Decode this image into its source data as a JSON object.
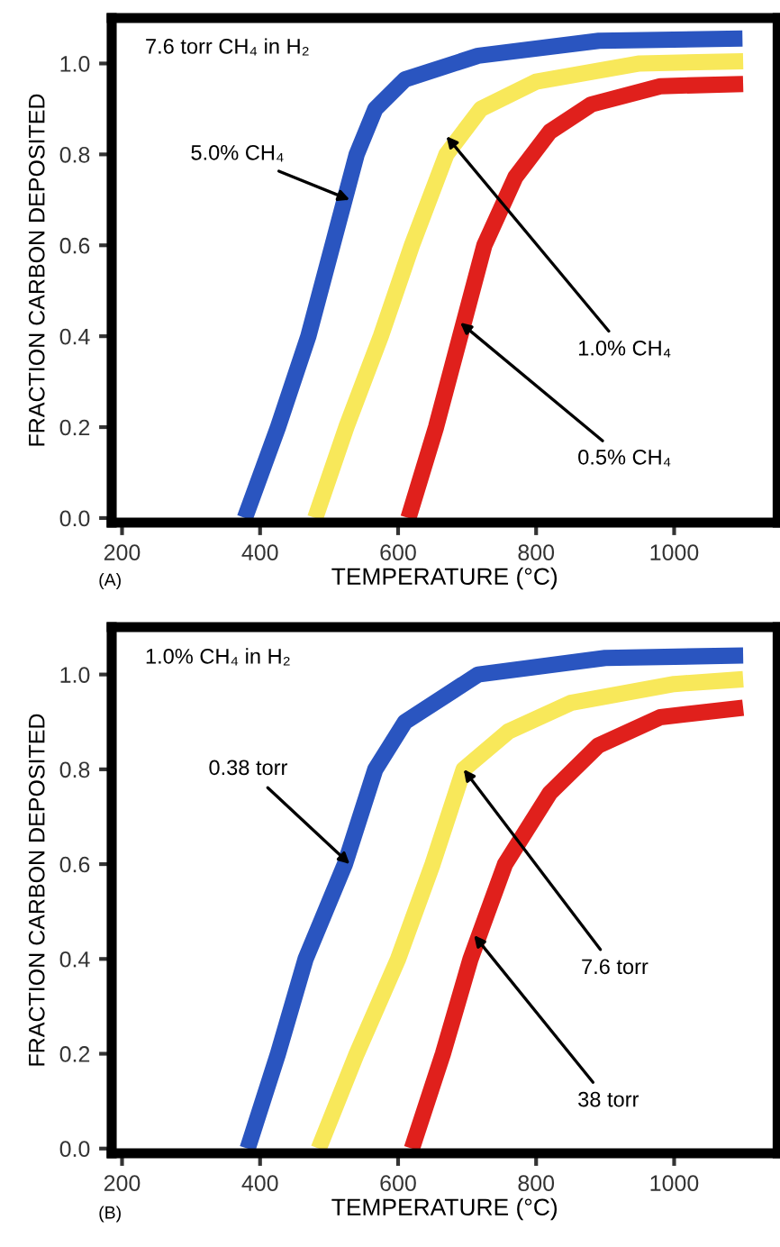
{
  "chart_data": [
    {
      "type": "line",
      "title": "7.6 torr CH₄ in H₂",
      "xlabel": "TEMPERATURE (°C)",
      "ylabel": "FRACTION CARBON DEPOSITED",
      "xlim": [
        185,
        1150
      ],
      "ylim": [
        -0.01,
        1.1
      ],
      "xticks": [
        200,
        400,
        600,
        800,
        1000
      ],
      "yticks": [
        {
          "value": 0,
          "label": "0.0"
        },
        {
          "value": 0.2,
          "label": "0.2"
        },
        {
          "value": 0.4,
          "label": "0.4"
        },
        {
          "value": 0.6,
          "label": "0.6"
        },
        {
          "value": 0.8,
          "label": "0.8"
        },
        {
          "value": 1,
          "label": "1.0"
        }
      ],
      "grid": false,
      "legend": false,
      "line_style": "solid",
      "marker": "none",
      "series": [
        {
          "color": "#2a55c0",
          "x": [
            378,
            426,
            470,
            505,
            540,
            567,
            610,
            716,
            891,
            1099
          ],
          "values": [
            0,
            0.2,
            0.4,
            0.6,
            0.8,
            0.9,
            0.965,
            1.017,
            1.05,
            1.055
          ]
        },
        {
          "color": "#f8e85a",
          "x": [
            480,
            525,
            575,
            620,
            670,
            720,
            800,
            950,
            1100
          ],
          "values": [
            0,
            0.2,
            0.4,
            0.6,
            0.8,
            0.9,
            0.96,
            1.0,
            1.005
          ]
        },
        {
          "color": "#e0201c",
          "x": [
            615,
            655,
            690,
            725,
            770,
            820,
            880,
            980,
            1100
          ],
          "values": [
            0,
            0.2,
            0.4,
            0.6,
            0.75,
            0.85,
            0.91,
            0.95,
            0.955
          ]
        }
      ],
      "annotations": [
        {
          "text": "5.0% CH₄",
          "x": 530,
          "y": 0.7
        },
        {
          "text": "1.0% CH₄",
          "x": 670,
          "y": 0.84
        },
        {
          "text": "0.5% CH₄",
          "x": 690,
          "y": 0.43
        },
        "(A)"
      ]
    },
    {
      "type": "line",
      "title": "1.0% CH₄ in H₂",
      "xlabel": "TEMPERATURE (°C)",
      "ylabel": "FRACTION CARBON DEPOSITED",
      "xlim": [
        185,
        1150
      ],
      "ylim": [
        -0.01,
        1.1
      ],
      "xticks": [
        200,
        400,
        600,
        800,
        1000
      ],
      "yticks": [
        {
          "value": 0,
          "label": "0.0"
        },
        {
          "value": 0.2,
          "label": "0.2"
        },
        {
          "value": 0.4,
          "label": "0.4"
        },
        {
          "value": 0.6,
          "label": "0.6"
        },
        {
          "value": 0.8,
          "label": "0.8"
        },
        {
          "value": 1,
          "label": "1.0"
        }
      ],
      "grid": false,
      "legend": false,
      "line_style": "solid",
      "marker": "none",
      "series": [
        {
          "color": "#2a55c0",
          "x": [
            382,
            426,
            466,
            523,
            567,
            610,
            716,
            900,
            1100
          ],
          "values": [
            0,
            0.2,
            0.4,
            0.6,
            0.8,
            0.9,
            1.0,
            1.035,
            1.04
          ]
        },
        {
          "color": "#f8e85a",
          "x": [
            485,
            540,
            600,
            650,
            695,
            760,
            850,
            1000,
            1100
          ],
          "values": [
            0,
            0.2,
            0.4,
            0.6,
            0.8,
            0.88,
            0.94,
            0.98,
            0.99
          ]
        },
        {
          "color": "#e0201c",
          "x": [
            620,
            665,
            705,
            755,
            820,
            890,
            980,
            1100
          ],
          "values": [
            0,
            0.2,
            0.4,
            0.6,
            0.75,
            0.85,
            0.91,
            0.93
          ]
        }
      ],
      "annotations": [
        {
          "text": "0.38 torr",
          "x": 530,
          "y": 0.6
        },
        {
          "text": "7.6 torr",
          "x": 695,
          "y": 0.8
        },
        {
          "text": "38 torr",
          "x": 710,
          "y": 0.45
        },
        "(B)"
      ]
    }
  ]
}
